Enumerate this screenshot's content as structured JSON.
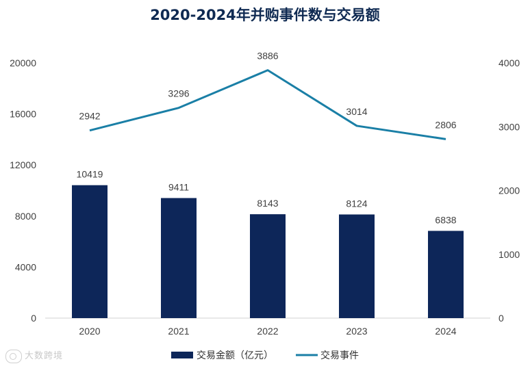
{
  "title": "2020-2024年并购事件数与交易额",
  "watermark": "大数跨境",
  "colors": {
    "bar": "#0d2659",
    "line": "#1a7fa6",
    "title": "#0f2a52",
    "axis": "#d0d0d0"
  },
  "chart_data": {
    "type": "bar",
    "title": "2020-2024年并购事件数与交易额",
    "categories": [
      "2020",
      "2021",
      "2022",
      "2023",
      "2024"
    ],
    "series": [
      {
        "name": "交易金额（亿元）",
        "type": "bar",
        "axis": "left",
        "values": [
          10419,
          9411,
          8143,
          8124,
          6838
        ]
      },
      {
        "name": "交易事件",
        "type": "line",
        "axis": "right",
        "values": [
          2942,
          3296,
          3886,
          3014,
          2806
        ]
      }
    ],
    "y_left": {
      "min": 0,
      "max": 20000,
      "ticks": [
        "0",
        "4000",
        "8000",
        "12000",
        "16000",
        "20000"
      ]
    },
    "y_right": {
      "min": 0,
      "max": 4000,
      "ticks": [
        "0",
        "1000",
        "2000",
        "3000",
        "4000"
      ]
    },
    "grid": false,
    "legend_position": "bottom"
  }
}
